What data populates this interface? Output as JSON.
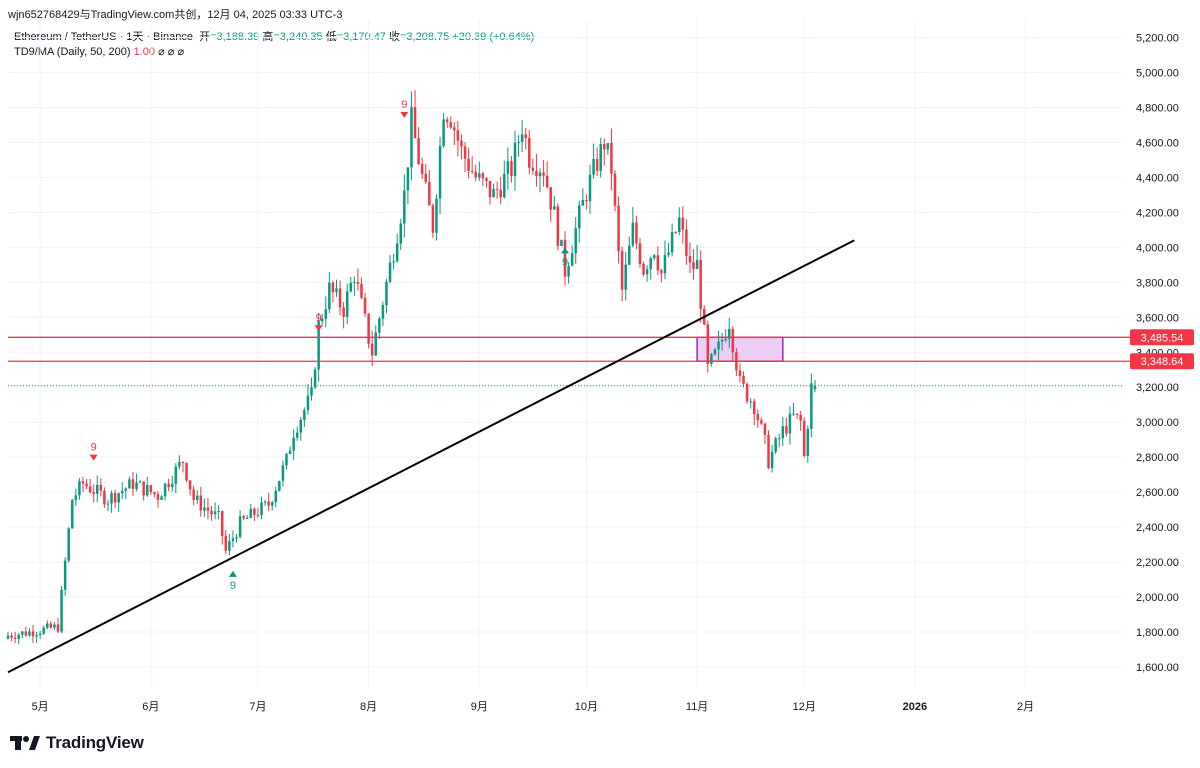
{
  "header": {
    "watermark": "wjn652768429与TradingView.com共创，12月 04, 2025 03:33 UTC-3"
  },
  "legend": {
    "symbol": "Ethereum / TetherUS · 1天 · Binance",
    "open_label": "开",
    "open": "=3,188.39",
    "high_label": "高",
    "high": "=3,240.35",
    "low_label": "低",
    "low": "=3,170.47",
    "close_label": "收",
    "close": "=3,208.75",
    "change": "+20.39 (+0.64%)",
    "indicator": "TD9/MA (Daily, 50, 200)",
    "indicator_value": "1.00",
    "indicator_flags": "⌀ ⌀ ⌀"
  },
  "brand": {
    "name": "TradingView"
  },
  "colors": {
    "up": "#089981",
    "down": "#f23645",
    "hline": "#f23645",
    "trendline": "#000000",
    "zone_fill": "#e7bff0",
    "zone_border": "#9c27b0",
    "grid": "#f0f3fa",
    "axis_text": "#131722"
  },
  "chart_data": {
    "type": "candlestick",
    "symbol": "ETHUSDT",
    "interval": "1D",
    "y_axis": {
      "min": 1480,
      "max": 5300,
      "ticks": [
        1600,
        1800,
        2000,
        2200,
        2400,
        2600,
        2800,
        3000,
        3200,
        3400,
        3600,
        3800,
        4000,
        4200,
        4400,
        4600,
        4800,
        5000,
        5200
      ]
    },
    "x_axis": {
      "start": "2025-04-22",
      "end": "2026-02-28",
      "ticks": [
        {
          "date": "2025-05-01",
          "label": "5月"
        },
        {
          "date": "2025-06-01",
          "label": "6月"
        },
        {
          "date": "2025-07-01",
          "label": "7月"
        },
        {
          "date": "2025-08-01",
          "label": "8月"
        },
        {
          "date": "2025-09-01",
          "label": "9月"
        },
        {
          "date": "2025-10-01",
          "label": "10月"
        },
        {
          "date": "2025-11-01",
          "label": "11月"
        },
        {
          "date": "2025-12-01",
          "label": "12月"
        },
        {
          "date": "2026-01-01",
          "label": "2026",
          "bold": true
        },
        {
          "date": "2026-02-01",
          "label": "2月"
        }
      ]
    },
    "series": [
      {
        "name": "ETHUSDT",
        "anchors": [
          [
            "2025-04-22",
            1780
          ],
          [
            "2025-05-01",
            1810
          ],
          [
            "2025-05-06",
            1830
          ],
          [
            "2025-05-08",
            2200
          ],
          [
            "2025-05-10",
            2560
          ],
          [
            "2025-05-13",
            2650
          ],
          [
            "2025-05-20",
            2560
          ],
          [
            "2025-05-27",
            2650
          ],
          [
            "2025-06-03",
            2580
          ],
          [
            "2025-06-10",
            2780
          ],
          [
            "2025-06-13",
            2560
          ],
          [
            "2025-06-20",
            2450
          ],
          [
            "2025-06-22",
            2260
          ],
          [
            "2025-06-26",
            2420
          ],
          [
            "2025-06-30",
            2480
          ],
          [
            "2025-07-04",
            2530
          ],
          [
            "2025-07-09",
            2780
          ],
          [
            "2025-07-11",
            2950
          ],
          [
            "2025-07-16",
            3150
          ],
          [
            "2025-07-18",
            3550
          ],
          [
            "2025-07-21",
            3760
          ],
          [
            "2025-07-25",
            3650
          ],
          [
            "2025-07-28",
            3850
          ],
          [
            "2025-08-01",
            3480
          ],
          [
            "2025-08-02",
            3400
          ],
          [
            "2025-08-08",
            3990
          ],
          [
            "2025-08-11",
            4300
          ],
          [
            "2025-08-13",
            4720
          ],
          [
            "2025-08-16",
            4400
          ],
          [
            "2025-08-19",
            4120
          ],
          [
            "2025-08-22",
            4800
          ],
          [
            "2025-08-24",
            4750
          ],
          [
            "2025-08-27",
            4550
          ],
          [
            "2025-08-31",
            4400
          ],
          [
            "2025-09-05",
            4300
          ],
          [
            "2025-09-10",
            4450
          ],
          [
            "2025-09-13",
            4700
          ],
          [
            "2025-09-15",
            4520
          ],
          [
            "2025-09-19",
            4450
          ],
          [
            "2025-09-22",
            4180
          ],
          [
            "2025-09-25",
            3870
          ],
          [
            "2025-09-28",
            4100
          ],
          [
            "2025-10-01",
            4320
          ],
          [
            "2025-10-06",
            4600
          ],
          [
            "2025-10-08",
            4450
          ],
          [
            "2025-10-10",
            3950
          ],
          [
            "2025-10-11",
            3750
          ],
          [
            "2025-10-14",
            4100
          ],
          [
            "2025-10-17",
            3880
          ],
          [
            "2025-10-20",
            4000
          ],
          [
            "2025-10-22",
            3850
          ],
          [
            "2025-10-27",
            4150
          ],
          [
            "2025-10-30",
            3880
          ],
          [
            "2025-11-01",
            3900
          ],
          [
            "2025-11-04",
            3300
          ],
          [
            "2025-11-07",
            3420
          ],
          [
            "2025-11-10",
            3580
          ],
          [
            "2025-11-13",
            3220
          ],
          [
            "2025-11-17",
            3100
          ],
          [
            "2025-11-20",
            2880
          ],
          [
            "2025-11-21",
            2780
          ],
          [
            "2025-11-25",
            2950
          ],
          [
            "2025-11-28",
            3030
          ],
          [
            "2025-11-30",
            3000
          ],
          [
            "2025-12-01",
            2800
          ],
          [
            "2025-12-02",
            3000
          ],
          [
            "2025-12-03",
            3200
          ],
          [
            "2025-12-04",
            3208.75
          ]
        ],
        "last_bar": {
          "date": "2025-12-04",
          "open": 3188.39,
          "high": 3240.35,
          "low": 3170.47,
          "close": 3208.75
        }
      }
    ],
    "horizontal_lines": [
      {
        "price": 3485.54,
        "label": "3,485.54"
      },
      {
        "price": 3348.64,
        "label": "3,348.64"
      }
    ],
    "last_price_line": 3208.75,
    "trendline": {
      "from": [
        "2025-04-22",
        1570
      ],
      "to": [
        "2025-12-15",
        4040
      ]
    },
    "zone": {
      "x1": "2025-11-01",
      "x2": "2025-11-25",
      "y1": 3348.64,
      "y2": 3485.54
    },
    "td9_markers": [
      {
        "date": "2025-05-16",
        "price": 2780,
        "dir": "down",
        "label": "9"
      },
      {
        "date": "2025-06-24",
        "price": 2150,
        "dir": "up",
        "label": "9"
      },
      {
        "date": "2025-07-18",
        "price": 3520,
        "dir": "down",
        "label": "9"
      },
      {
        "date": "2025-08-11",
        "price": 4740,
        "dir": "down",
        "label": "9"
      },
      {
        "date": "2025-09-25",
        "price": 4000,
        "dir": "up",
        "label": "9"
      }
    ]
  }
}
